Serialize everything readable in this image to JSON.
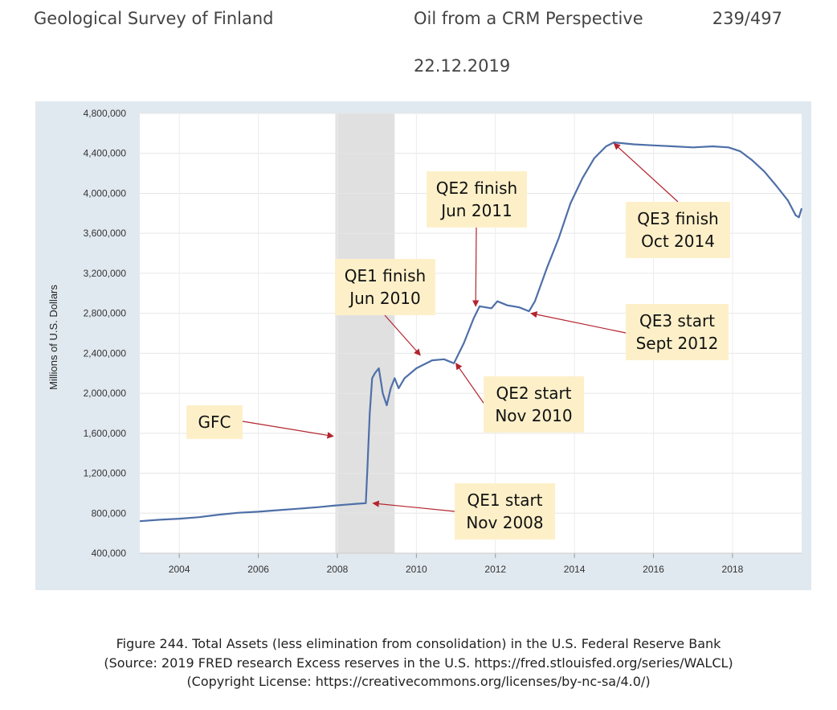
{
  "header": {
    "left": "Geological Survey of Finland",
    "center": "Oil from a CRM Perspective",
    "page": "239/497",
    "date": "22.12.2019"
  },
  "caption": {
    "line1": "Figure 244. Total Assets (less elimination from consolidation) in the U.S. Federal Reserve Bank",
    "line2": "(Source: 2019 FRED research Excess reserves in the U.S. https://fred.stlouisfed.org/series/WALCL)",
    "line3": "(Copyright License: https://creativecommons.org/licenses/by-nc-sa/4.0/)"
  },
  "colors": {
    "line": "#4e6fa8",
    "recession": "#e0e0e0",
    "annotation_box": "#fdf0c9",
    "arrow": "#b3242e",
    "panel": "#e1e9f0"
  },
  "chart_data": {
    "type": "line",
    "title": "",
    "xlabel": "",
    "ylabel": "Millions of U.S. Dollars",
    "xlim": [
      2003.0,
      2019.75
    ],
    "ylim": [
      400000,
      4800000
    ],
    "grid": true,
    "x_ticks": [
      2004,
      2006,
      2008,
      2010,
      2012,
      2014,
      2016,
      2018
    ],
    "x_tick_labels": [
      "2004",
      "2006",
      "2008",
      "2010",
      "2012",
      "2014",
      "2016",
      "2018"
    ],
    "y_ticks": [
      400000,
      800000,
      1200000,
      1600000,
      2000000,
      2400000,
      2800000,
      3200000,
      3600000,
      4000000,
      4400000,
      4800000
    ],
    "y_tick_labels": [
      "400,000",
      "800,000",
      "1,200,000",
      "1,600,000",
      "2,000,000",
      "2,400,000",
      "2,800,000",
      "3,200,000",
      "3,600,000",
      "4,000,000",
      "4,400,000",
      "4,800,000"
    ],
    "shaded_regions": [
      {
        "x_start": 2007.95,
        "x_end": 2009.45
      }
    ],
    "series": [
      {
        "values": [
          [
            2003.0,
            720000
          ],
          [
            2003.5,
            735000
          ],
          [
            2004.0,
            745000
          ],
          [
            2004.5,
            760000
          ],
          [
            2005.0,
            785000
          ],
          [
            2005.5,
            805000
          ],
          [
            2006.0,
            815000
          ],
          [
            2006.5,
            830000
          ],
          [
            2007.0,
            845000
          ],
          [
            2007.5,
            860000
          ],
          [
            2007.9,
            875000
          ],
          [
            2008.2,
            885000
          ],
          [
            2008.5,
            895000
          ],
          [
            2008.72,
            900000
          ],
          [
            2008.76,
            1250000
          ],
          [
            2008.82,
            1800000
          ],
          [
            2008.88,
            2150000
          ],
          [
            2008.95,
            2200000
          ],
          [
            2009.05,
            2250000
          ],
          [
            2009.15,
            2000000
          ],
          [
            2009.25,
            1880000
          ],
          [
            2009.35,
            2050000
          ],
          [
            2009.45,
            2150000
          ],
          [
            2009.55,
            2050000
          ],
          [
            2009.7,
            2150000
          ],
          [
            2010.0,
            2250000
          ],
          [
            2010.4,
            2330000
          ],
          [
            2010.7,
            2340000
          ],
          [
            2010.95,
            2300000
          ],
          [
            2011.2,
            2500000
          ],
          [
            2011.45,
            2750000
          ],
          [
            2011.6,
            2870000
          ],
          [
            2011.9,
            2850000
          ],
          [
            2012.05,
            2920000
          ],
          [
            2012.3,
            2880000
          ],
          [
            2012.6,
            2860000
          ],
          [
            2012.85,
            2820000
          ],
          [
            2013.0,
            2920000
          ],
          [
            2013.3,
            3250000
          ],
          [
            2013.6,
            3550000
          ],
          [
            2013.9,
            3900000
          ],
          [
            2014.2,
            4150000
          ],
          [
            2014.5,
            4350000
          ],
          [
            2014.8,
            4470000
          ],
          [
            2015.0,
            4510000
          ],
          [
            2015.5,
            4490000
          ],
          [
            2016.0,
            4480000
          ],
          [
            2016.5,
            4470000
          ],
          [
            2017.0,
            4460000
          ],
          [
            2017.5,
            4470000
          ],
          [
            2017.9,
            4460000
          ],
          [
            2018.2,
            4420000
          ],
          [
            2018.5,
            4330000
          ],
          [
            2018.8,
            4220000
          ],
          [
            2019.1,
            4080000
          ],
          [
            2019.4,
            3930000
          ],
          [
            2019.6,
            3780000
          ],
          [
            2019.68,
            3760000
          ],
          [
            2019.75,
            3850000
          ]
        ]
      }
    ],
    "annotations": [
      {
        "label_lines": [
          "GFC"
        ],
        "target": [
          2007.9,
          1570000
        ]
      },
      {
        "label_lines": [
          "QE1 start",
          "Nov 2008"
        ],
        "target": [
          2008.9,
          900000
        ]
      },
      {
        "label_lines": [
          "QE1 finish",
          "Jun 2010"
        ],
        "target": [
          2010.1,
          2380000
        ]
      },
      {
        "label_lines": [
          "QE2 start",
          "Nov 2010"
        ],
        "target": [
          2011.0,
          2300000
        ]
      },
      {
        "label_lines": [
          "QE2 finish",
          "Jun 2011"
        ],
        "target": [
          2011.5,
          2870000
        ]
      },
      {
        "label_lines": [
          "QE3 start",
          "Sept 2012"
        ],
        "target": [
          2012.9,
          2800000
        ]
      },
      {
        "label_lines": [
          "QE3 finish",
          "Oct 2014"
        ],
        "target": [
          2015.0,
          4500000
        ]
      }
    ]
  }
}
